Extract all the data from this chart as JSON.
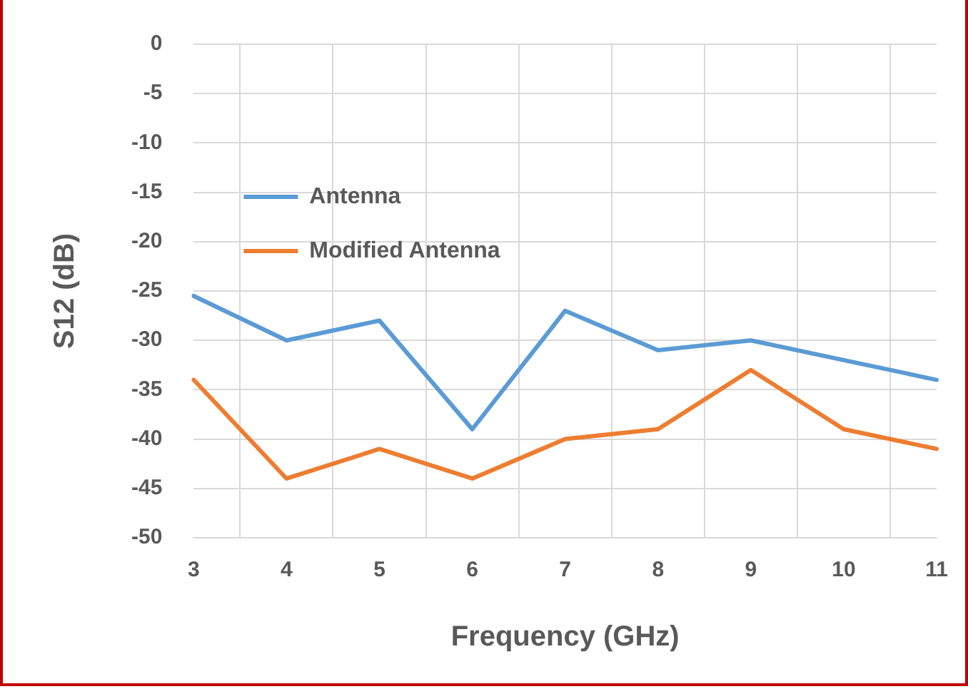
{
  "chart_data": {
    "type": "line",
    "xlabel": "Frequency (GHz)",
    "ylabel": "S12 (dB)",
    "categories": [
      "3",
      "4",
      "5",
      "6",
      "7",
      "8",
      "9",
      "10",
      "11"
    ],
    "series": [
      {
        "name": "Antenna",
        "color": "#5b9bd5",
        "values": [
          -25.5,
          -30,
          -28,
          -39,
          -27,
          -31,
          -30,
          -32,
          -34
        ]
      },
      {
        "name": "Modified Antenna",
        "color": "#ed7d31",
        "values": [
          -34,
          -44,
          -41,
          -44,
          -40,
          -39,
          -33,
          -39,
          -41
        ]
      }
    ],
    "ylim": [
      -50,
      0
    ],
    "yticks": [
      -50,
      -45,
      -40,
      -35,
      -30,
      -25,
      -20,
      -15,
      -10,
      -5,
      0
    ],
    "grid": true,
    "legend": "top left",
    "marker": "none",
    "line_style": "solid"
  }
}
